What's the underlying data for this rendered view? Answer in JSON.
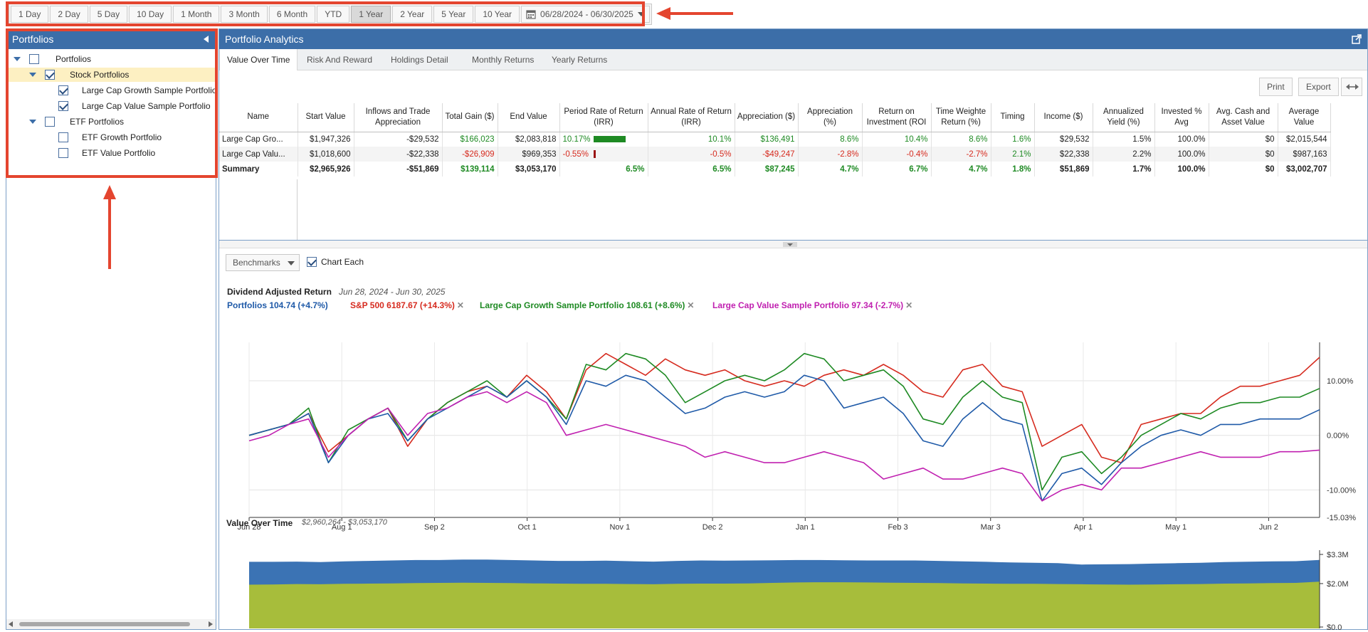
{
  "range_buttons": [
    {
      "label": "1 Day"
    },
    {
      "label": "2 Day"
    },
    {
      "label": "5 Day"
    },
    {
      "label": "10 Day"
    },
    {
      "label": "1 Month"
    },
    {
      "label": "3 Month"
    },
    {
      "label": "6 Month"
    },
    {
      "label": "YTD"
    },
    {
      "label": "1 Year",
      "active": true
    },
    {
      "label": "2 Year"
    },
    {
      "label": "5 Year"
    },
    {
      "label": "10 Year"
    }
  ],
  "date_range": "06/28/2024 - 06/30/2025",
  "sidebar": {
    "title": "Portfolios",
    "items": [
      {
        "label": "Portfolios",
        "level": 0,
        "expandable": true,
        "checked": false
      },
      {
        "label": "Stock Portfolios",
        "level": 1,
        "expandable": true,
        "checked": true,
        "selected": true
      },
      {
        "label": "Large Cap Growth Sample Portfolio",
        "level": 2,
        "checked": true
      },
      {
        "label": "Large Cap Value Sample Portfolio",
        "level": 2,
        "checked": true
      },
      {
        "label": "ETF Portfolios",
        "level": 1,
        "expandable": true,
        "checked": false
      },
      {
        "label": "ETF Growth Portfolio",
        "level": 2,
        "checked": false
      },
      {
        "label": "ETF Value Portfolio",
        "level": 2,
        "checked": false
      }
    ]
  },
  "panel": {
    "title": "Portfolio Analytics"
  },
  "tabs": [
    {
      "label": "Value Over Time",
      "active": true
    },
    {
      "label": "Risk And Reward"
    },
    {
      "label": "Holdings Detail"
    },
    {
      "label": "Monthly Returns"
    },
    {
      "label": "Yearly Returns"
    }
  ],
  "toolbar": {
    "print": "Print",
    "export": "Export"
  },
  "table": {
    "columns": [
      "Name",
      "Start Value",
      "Inflows and Trade Appreciation",
      "Total Gain ($)",
      "End Value",
      "Period Rate of Return (IRR)",
      "Annual Rate of Return (IRR)",
      "Appreciation ($)",
      "Appreciation (%)",
      "Return on Investment (ROI",
      "Time Weighte Return (%)",
      "Timing",
      "Income ($)",
      "Annualized Yield (%)",
      "Invested % Avg",
      "Avg. Cash and Asset Value",
      "Average Value"
    ],
    "rows": [
      {
        "name": "Large Cap Gro...",
        "start": "$1,947,326",
        "inflows": "-$29,532",
        "gain": "$166,023",
        "end": "$2,083,818",
        "period": "10.17%",
        "period_bar": 1,
        "annual": "10.1%",
        "appr_d": "$136,491",
        "appr_p": "8.6%",
        "roi": "10.4%",
        "twr": "8.6%",
        "timing": "1.6%",
        "income": "$29,532",
        "yield": "1.5%",
        "invested": "100.0%",
        "cash": "$0",
        "avg": "$2,015,544",
        "sign": "pos"
      },
      {
        "name": "Large Cap Valu...",
        "start": "$1,018,600",
        "inflows": "-$22,338",
        "gain": "-$26,909",
        "end": "$969,353",
        "period": "-0.55%",
        "period_bar": -0.054,
        "annual": "-0.5%",
        "appr_d": "-$49,247",
        "appr_p": "-2.8%",
        "roi": "-0.4%",
        "twr": "-2.7%",
        "timing": "2.1%",
        "income": "$22,338",
        "yield": "2.2%",
        "invested": "100.0%",
        "cash": "$0",
        "avg": "$987,163",
        "sign": "neg"
      }
    ],
    "summary": {
      "name": "Summary",
      "start": "$2,965,926",
      "inflows": "-$51,869",
      "gain": "$139,114",
      "end": "$3,053,170",
      "period": "6.5%",
      "annual": "6.5%",
      "appr_d": "$87,245",
      "appr_p": "4.7%",
      "roi": "6.7%",
      "twr": "4.7%",
      "timing": "1.8%",
      "income": "$51,869",
      "yield": "1.7%",
      "invested": "100.0%",
      "cash": "$0",
      "avg": "$3,002,707"
    }
  },
  "benchmarks_label": "Benchmarks",
  "chart_each_label": "Chart Each",
  "chart_data": [
    {
      "type": "line",
      "title": "Dividend Adjusted Return",
      "subtitle": "Jun 28, 2024 - Jun 30, 2025",
      "x_ticks": [
        "Jun 28",
        "Aug 1",
        "Sep 2",
        "Oct 1",
        "Nov 1",
        "Dec 2",
        "Jan 1",
        "Feb 3",
        "Mar 3",
        "Apr 1",
        "May 1",
        "Jun 2"
      ],
      "y_ticks": [
        "10.00%",
        "0.00%",
        "-10.00%",
        "-15.03%"
      ],
      "ylim": [
        -15.03,
        16
      ],
      "grid": true,
      "legend": [
        {
          "text": "Portfolios 104.74 (+4.7%)",
          "color": "#1f5aa8",
          "removable": false
        },
        {
          "text": "S&P 500 6187.67 (+14.3%)",
          "color": "#d62b1f",
          "removable": true
        },
        {
          "text": "Large Cap Growth Sample Portfolio 108.61 (+8.6%)",
          "color": "#1e8a23",
          "removable": true
        },
        {
          "text": "Large Cap Value Sample Portfolio 97.34 (-2.7%)",
          "color": "#c020b0",
          "removable": true
        }
      ],
      "series": [
        {
          "color": "#d62b1f",
          "values": [
            0,
            1,
            2,
            4,
            -3,
            0,
            3,
            5,
            -2,
            3,
            6,
            8,
            9,
            7,
            11,
            8,
            3,
            12,
            15,
            13,
            11,
            14,
            12,
            11,
            12,
            10,
            9,
            10,
            9,
            11,
            12,
            11,
            13,
            11,
            8,
            7,
            12,
            13,
            9,
            8,
            -2,
            0,
            2,
            -4,
            -5,
            2,
            3,
            4,
            4,
            7,
            9,
            9,
            10,
            11,
            14.3
          ]
        },
        {
          "color": "#1e8a23",
          "values": [
            0,
            1,
            2,
            5,
            -5,
            1,
            3,
            5,
            -1,
            3,
            6,
            8,
            10,
            7,
            10,
            7,
            3,
            13,
            12,
            15,
            14,
            11,
            6,
            8,
            10,
            11,
            10,
            12,
            15,
            14,
            10,
            11,
            12,
            9,
            3,
            2,
            7,
            10,
            7,
            6,
            -10,
            -4,
            -3,
            -7,
            -4,
            0,
            2,
            4,
            3,
            5,
            6,
            6,
            7,
            7,
            8.6
          ]
        },
        {
          "color": "#1f5aa8",
          "values": [
            0,
            1,
            2,
            4,
            -5,
            0,
            3,
            4,
            -1,
            3,
            5,
            7,
            9,
            7,
            10,
            7,
            2,
            10,
            9,
            11,
            10,
            7,
            4,
            5,
            7,
            8,
            7,
            8,
            11,
            10,
            5,
            6,
            7,
            4,
            -1,
            -2,
            3,
            6,
            3,
            2,
            -12,
            -7,
            -6,
            -9,
            -5,
            -2,
            0,
            1,
            0,
            2,
            2,
            3,
            3,
            3,
            4.7
          ]
        },
        {
          "color": "#c020b0",
          "values": [
            -1,
            0,
            2,
            3,
            -4,
            0,
            3,
            5,
            0,
            4,
            5,
            7,
            8,
            6,
            8,
            6,
            0,
            1,
            2,
            1,
            0,
            -1,
            -2,
            -4,
            -3,
            -4,
            -5,
            -5,
            -4,
            -3,
            -4,
            -5,
            -8,
            -7,
            -6,
            -8,
            -8,
            -7,
            -6,
            -7,
            -12,
            -10,
            -9,
            -10,
            -6,
            -6,
            -5,
            -4,
            -3,
            -4,
            -4,
            -4,
            -3,
            -3,
            -2.7
          ]
        }
      ]
    },
    {
      "type": "area",
      "title": "Value Over Time",
      "subtitle": "$2,960,264 - $3,053,170",
      "y_ticks": [
        "$3.3M",
        "$2.0M",
        "$0.0"
      ],
      "ylim": [
        0,
        3300000
      ],
      "series": [
        {
          "name": "Large Cap Growth Sample Portfolio",
          "color": "#a7bd3b",
          "values": [
            1950000,
            1960000,
            1980000,
            1970000,
            1990000,
            2000000,
            2010000,
            2020000,
            2030000,
            2040000,
            2030000,
            2020000,
            2010000,
            2000000,
            1990000,
            1990000,
            1980000,
            1970000,
            1990000,
            2000000,
            2000000,
            2010000,
            2030000,
            2050000,
            2060000,
            2060000,
            2050000,
            2040000,
            2030000,
            2020000,
            2010000,
            2000000,
            1990000,
            1990000,
            1980000,
            1970000,
            1960000,
            1950000,
            1960000,
            1970000,
            1980000,
            2000000,
            2010000,
            2020000,
            2030000,
            2083818
          ]
        },
        {
          "name": "Large Cap Value Sample Portfolio",
          "color": "#3b73b4",
          "values": [
            1018600,
            1010000,
            1000000,
            990000,
            1000000,
            1010000,
            1020000,
            1030000,
            1020000,
            1030000,
            1040000,
            1030000,
            1020000,
            1010000,
            1020000,
            1030000,
            1020000,
            1010000,
            1020000,
            1030000,
            1020000,
            1020000,
            1010000,
            1000000,
            990000,
            980000,
            980000,
            990000,
            1000000,
            990000,
            980000,
            970000,
            950000,
            940000,
            930000,
            880000,
            900000,
            920000,
            930000,
            940000,
            950000,
            960000,
            965000,
            968000,
            969000,
            969353
          ]
        }
      ]
    }
  ]
}
